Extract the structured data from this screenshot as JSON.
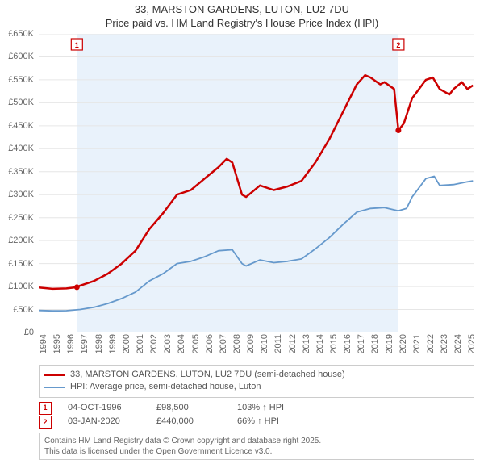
{
  "title": {
    "line1": "33, MARSTON GARDENS, LUTON, LU2 7DU",
    "line2": "Price paid vs. HM Land Registry's House Price Index (HPI)",
    "fontsize": 13,
    "color": "#333333"
  },
  "chart": {
    "type": "line",
    "background_color": "#ffffff",
    "plot_band_color": "#e9f2fb",
    "grid_color": "#e6e6e6",
    "axis_color": "#666666",
    "xlim": [
      1994,
      2025.5
    ],
    "ylim": [
      0,
      650000
    ],
    "ytick_step": 50000,
    "yticks": [
      0,
      50000,
      100000,
      150000,
      200000,
      250000,
      300000,
      350000,
      400000,
      450000,
      500000,
      550000,
      600000,
      650000
    ],
    "ytick_labels": [
      "£0",
      "£50K",
      "£100K",
      "£150K",
      "£200K",
      "£250K",
      "£300K",
      "£350K",
      "£400K",
      "£450K",
      "£500K",
      "£550K",
      "£600K",
      "£650K"
    ],
    "xticks": [
      1994,
      1995,
      1996,
      1997,
      1998,
      1999,
      2000,
      2001,
      2002,
      2003,
      2004,
      2005,
      2006,
      2007,
      2008,
      2009,
      2010,
      2011,
      2012,
      2013,
      2014,
      2015,
      2016,
      2017,
      2018,
      2019,
      2020,
      2021,
      2022,
      2023,
      2024,
      2025
    ],
    "plot_band": {
      "x_start": 1996.76,
      "x_end": 2020.01
    },
    "series": [
      {
        "name": "33, MARSTON GARDENS, LUTON, LU2 7DU (semi-detached house)",
        "color": "#cc0000",
        "line_width": 2.5,
        "data": [
          [
            1994,
            98000
          ],
          [
            1995,
            95000
          ],
          [
            1996,
            96000
          ],
          [
            1996.76,
            98500
          ],
          [
            1997,
            102000
          ],
          [
            1998,
            112000
          ],
          [
            1999,
            128000
          ],
          [
            2000,
            150000
          ],
          [
            2001,
            178000
          ],
          [
            2002,
            225000
          ],
          [
            2003,
            260000
          ],
          [
            2004,
            300000
          ],
          [
            2005,
            310000
          ],
          [
            2006,
            335000
          ],
          [
            2007,
            360000
          ],
          [
            2007.6,
            378000
          ],
          [
            2008,
            370000
          ],
          [
            2008.7,
            300000
          ],
          [
            2009,
            295000
          ],
          [
            2010,
            320000
          ],
          [
            2011,
            310000
          ],
          [
            2012,
            318000
          ],
          [
            2013,
            330000
          ],
          [
            2014,
            370000
          ],
          [
            2015,
            420000
          ],
          [
            2016,
            480000
          ],
          [
            2017,
            540000
          ],
          [
            2017.6,
            560000
          ],
          [
            2018,
            555000
          ],
          [
            2018.7,
            540000
          ],
          [
            2019,
            545000
          ],
          [
            2019.7,
            530000
          ],
          [
            2020.01,
            440000
          ],
          [
            2020.4,
            455000
          ],
          [
            2021,
            510000
          ],
          [
            2022,
            550000
          ],
          [
            2022.5,
            555000
          ],
          [
            2023,
            530000
          ],
          [
            2023.7,
            518000
          ],
          [
            2024,
            530000
          ],
          [
            2024.6,
            545000
          ],
          [
            2025,
            530000
          ],
          [
            2025.4,
            538000
          ]
        ]
      },
      {
        "name": "HPI: Average price, semi-detached house, Luton",
        "color": "#6699cc",
        "line_width": 1.8,
        "data": [
          [
            1994,
            48000
          ],
          [
            1995,
            47000
          ],
          [
            1996,
            47500
          ],
          [
            1997,
            50000
          ],
          [
            1998,
            55000
          ],
          [
            1999,
            63000
          ],
          [
            2000,
            74000
          ],
          [
            2001,
            88000
          ],
          [
            2002,
            112000
          ],
          [
            2003,
            128000
          ],
          [
            2004,
            150000
          ],
          [
            2005,
            155000
          ],
          [
            2006,
            165000
          ],
          [
            2007,
            178000
          ],
          [
            2008,
            180000
          ],
          [
            2008.7,
            150000
          ],
          [
            2009,
            145000
          ],
          [
            2010,
            158000
          ],
          [
            2011,
            152000
          ],
          [
            2012,
            155000
          ],
          [
            2013,
            160000
          ],
          [
            2014,
            182000
          ],
          [
            2015,
            206000
          ],
          [
            2016,
            235000
          ],
          [
            2017,
            262000
          ],
          [
            2018,
            270000
          ],
          [
            2019,
            272000
          ],
          [
            2020,
            265000
          ],
          [
            2020.6,
            270000
          ],
          [
            2021,
            295000
          ],
          [
            2022,
            335000
          ],
          [
            2022.6,
            340000
          ],
          [
            2023,
            320000
          ],
          [
            2024,
            322000
          ],
          [
            2025,
            328000
          ],
          [
            2025.4,
            330000
          ]
        ]
      }
    ],
    "markers": [
      {
        "label": "1",
        "x": 1996.76,
        "y": 98500,
        "color": "#cc0000",
        "date": "04-OCT-1996",
        "price": "£98,500",
        "delta": "103% ↑ HPI"
      },
      {
        "label": "2",
        "x": 2020.01,
        "y": 440000,
        "color": "#cc0000",
        "date": "03-JAN-2020",
        "price": "£440,000",
        "delta": "66% ↑ HPI"
      }
    ]
  },
  "legend": {
    "border_color": "#cccccc",
    "items": [
      {
        "label": "33, MARSTON GARDENS, LUTON, LU2 7DU (semi-detached house)",
        "color": "#cc0000"
      },
      {
        "label": "HPI: Average price, semi-detached house, Luton",
        "color": "#6699cc"
      }
    ]
  },
  "footer": {
    "line1": "Contains HM Land Registry data © Crown copyright and database right 2025.",
    "line2": "This data is licensed under the Open Government Licence v3.0."
  }
}
